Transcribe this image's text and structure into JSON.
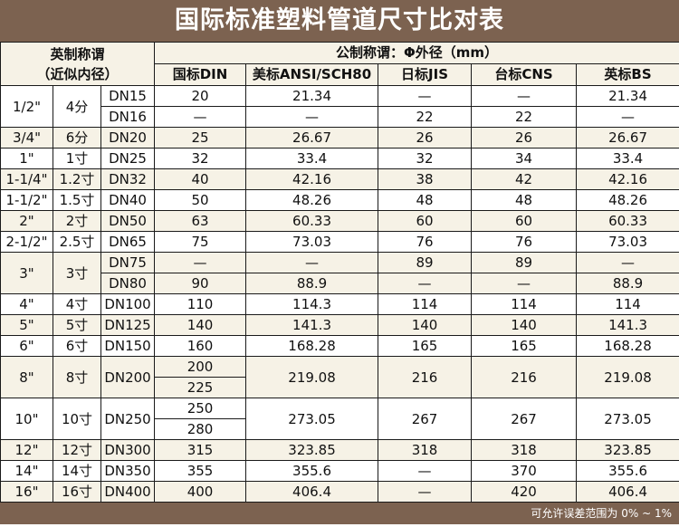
{
  "title": "国际标准塑料管道尺寸比对表",
  "header": {
    "imperial_label": "英制称谓",
    "imperial_sub": "（近似内径）",
    "metric_label": "公制称谓：Φ外径（mm）",
    "columns": [
      "国标DIN",
      "美标ANSI/SCH80",
      "日标JIS",
      "台标CNS",
      "英标BS"
    ]
  },
  "colors": {
    "brand": "#7c6250",
    "stripe": "#f6f2e6"
  },
  "groups": [
    {
      "inch": "1/2\"",
      "cun": "4分",
      "rows": [
        {
          "dn": "DN15",
          "din": "20",
          "ansi": "21.34",
          "jis": "—",
          "cns": "—",
          "bs": "21.34"
        },
        {
          "dn": "DN16",
          "din": "—",
          "ansi": "—",
          "jis": "22",
          "cns": "22",
          "bs": "—"
        }
      ]
    },
    {
      "inch": "3/4\"",
      "cun": "6分",
      "rows": [
        {
          "dn": "DN20",
          "din": "25",
          "ansi": "26.67",
          "jis": "26",
          "cns": "26",
          "bs": "26.67"
        }
      ]
    },
    {
      "inch": "1\"",
      "cun": "1寸",
      "rows": [
        {
          "dn": "DN25",
          "din": "32",
          "ansi": "33.4",
          "jis": "32",
          "cns": "34",
          "bs": "33.4"
        }
      ]
    },
    {
      "inch": "1-1/4\"",
      "cun": "1.2寸",
      "rows": [
        {
          "dn": "DN32",
          "din": "40",
          "ansi": "42.16",
          "jis": "38",
          "cns": "42",
          "bs": "42.16"
        }
      ]
    },
    {
      "inch": "1-1/2\"",
      "cun": "1.5寸",
      "rows": [
        {
          "dn": "DN40",
          "din": "50",
          "ansi": "48.26",
          "jis": "48",
          "cns": "48",
          "bs": "48.26"
        }
      ]
    },
    {
      "inch": "2\"",
      "cun": "2寸",
      "rows": [
        {
          "dn": "DN50",
          "din": "63",
          "ansi": "60.33",
          "jis": "60",
          "cns": "60",
          "bs": "60.33"
        }
      ]
    },
    {
      "inch": "2-1/2\"",
      "cun": "2.5寸",
      "rows": [
        {
          "dn": "DN65",
          "din": "75",
          "ansi": "73.03",
          "jis": "76",
          "cns": "76",
          "bs": "73.03"
        }
      ]
    },
    {
      "inch": "3\"",
      "cun": "3寸",
      "rows": [
        {
          "dn": "DN75",
          "din": "—",
          "ansi": "—",
          "jis": "89",
          "cns": "89",
          "bs": "—"
        },
        {
          "dn": "DN80",
          "din": "90",
          "ansi": "88.9",
          "jis": "—",
          "cns": "—",
          "bs": "88.9"
        }
      ]
    },
    {
      "inch": "4\"",
      "cun": "4寸",
      "rows": [
        {
          "dn": "DN100",
          "din": "110",
          "ansi": "114.3",
          "jis": "114",
          "cns": "114",
          "bs": "114"
        }
      ]
    },
    {
      "inch": "5\"",
      "cun": "5寸",
      "rows": [
        {
          "dn": "DN125",
          "din": "140",
          "ansi": "141.3",
          "jis": "140",
          "cns": "140",
          "bs": "141.3"
        }
      ]
    },
    {
      "inch": "6\"",
      "cun": "6寸",
      "rows": [
        {
          "dn": "DN150",
          "din": "160",
          "ansi": "168.28",
          "jis": "165",
          "cns": "165",
          "bs": "168.28"
        }
      ]
    },
    {
      "inch": "8\"",
      "cun": "8寸",
      "split": {
        "dn": "DN200",
        "din": [
          "200",
          "225"
        ],
        "ansi": "219.08",
        "jis": "216",
        "cns": "216",
        "bs": "219.08"
      }
    },
    {
      "inch": "10\"",
      "cun": "10寸",
      "split": {
        "dn": "DN250",
        "din": [
          "250",
          "280"
        ],
        "ansi": "273.05",
        "jis": "267",
        "cns": "267",
        "bs": "273.05"
      }
    },
    {
      "inch": "12\"",
      "cun": "12寸",
      "rows": [
        {
          "dn": "DN300",
          "din": "315",
          "ansi": "323.85",
          "jis": "318",
          "cns": "318",
          "bs": "323.85"
        }
      ]
    },
    {
      "inch": "14\"",
      "cun": "14寸",
      "rows": [
        {
          "dn": "DN350",
          "din": "355",
          "ansi": "355.6",
          "jis": "—",
          "cns": "370",
          "bs": "355.6"
        }
      ]
    },
    {
      "inch": "16\"",
      "cun": "16寸",
      "rows": [
        {
          "dn": "DN400",
          "din": "400",
          "ansi": "406.4",
          "jis": "—",
          "cns": "420",
          "bs": "406.4"
        }
      ]
    }
  ],
  "footer": "可允许误差范围为 0% ~ 1%"
}
